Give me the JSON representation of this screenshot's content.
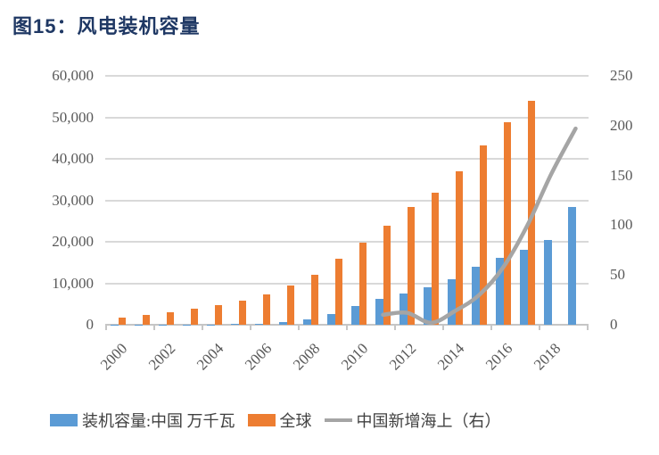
{
  "figure": {
    "title": "图15：风电装机容量"
  },
  "colors": {
    "title": "#1F3864",
    "china_bar": "#5B9BD5",
    "global_bar": "#ED7D31",
    "offshore_line": "#A5A5A5",
    "gridline": "#D9D9D9",
    "axis_line": "#C6C6C6",
    "axis_text": "#595959",
    "legend_text": "#404040"
  },
  "chart_data": {
    "type": "bar",
    "subtype": "dual-axis bar + smoothed line",
    "categories": [
      2000,
      2001,
      2002,
      2003,
      2004,
      2005,
      2006,
      2007,
      2008,
      2009,
      2010,
      2011,
      2012,
      2013,
      2014,
      2015,
      2016,
      2017,
      2018,
      2019
    ],
    "x_tick_labels": [
      "2000",
      "2002",
      "2004",
      "2006",
      "2008",
      "2010",
      "2012",
      "2014",
      "2016",
      "2018"
    ],
    "series": [
      {
        "name": "装机容量:中国 万千瓦",
        "type": "bar",
        "axis": "left",
        "color": "#5B9BD5",
        "values": [
          34,
          40,
          47,
          57,
          76,
          130,
          260,
          590,
          1250,
          2580,
          4500,
          6300,
          7530,
          9150,
          10900,
          13900,
          16100,
          18100,
          20500,
          28300
        ]
      },
      {
        "name": "全球",
        "type": "bar",
        "axis": "left",
        "color": "#ED7D31",
        "values": [
          1700,
          2400,
          3100,
          3900,
          4800,
          5900,
          7400,
          9400,
          12100,
          15900,
          19800,
          23800,
          28300,
          31900,
          37000,
          43300,
          48800,
          53900,
          null,
          null
        ]
      },
      {
        "name": "中国新增海上（右）",
        "type": "line",
        "axis": "right",
        "color": "#A5A5A5",
        "values": [
          null,
          null,
          null,
          null,
          null,
          null,
          null,
          null,
          null,
          null,
          null,
          10,
          12,
          2,
          14,
          30,
          58,
          100,
          152,
          197
        ]
      }
    ],
    "left_axis": {
      "min": 0,
      "max": 60000,
      "step": 10000,
      "tick_labels_top_to_bottom": [
        "60,000",
        "50,000",
        "40,000",
        "30,000",
        "20,000",
        "10,000",
        "0"
      ]
    },
    "right_axis": {
      "min": 0,
      "max": 250,
      "step": 50,
      "tick_labels_top_to_bottom": [
        "250",
        "200",
        "150",
        "100",
        "50",
        "0"
      ]
    },
    "grid": true,
    "legend_position": "bottom"
  }
}
